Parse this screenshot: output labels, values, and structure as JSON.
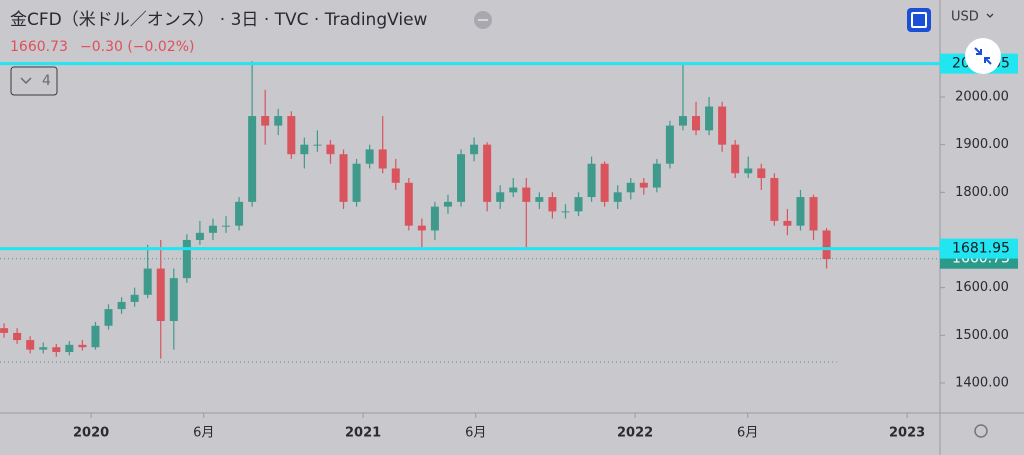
{
  "chart_data": {
    "type": "candlestick",
    "title": "金CFD（米ドル／オンス） · 3日 · TVC · TradingView",
    "last": 1660.73,
    "change": "−0.30 (−0.02%)",
    "currency": "USD",
    "indicator_count": "4",
    "up_color": "#3f9a8c",
    "down_color": "#d9545c",
    "level_color": "#22e5f2",
    "levels": [
      2070.05,
      1681.95
    ],
    "low_line": 1444,
    "xlim": [
      2019.665,
      2023.121
    ],
    "ylim": [
      1337,
      2203.5
    ],
    "xticks": [
      {
        "value": 2020,
        "label": "2020"
      },
      {
        "value": 2020.414,
        "label": "6月"
      },
      {
        "value": 2021,
        "label": "2021"
      },
      {
        "value": 2021.414,
        "label": "6月"
      },
      {
        "value": 2022,
        "label": "2022"
      },
      {
        "value": 2022.414,
        "label": "6月"
      },
      {
        "value": 2023,
        "label": "2023"
      }
    ],
    "yticks": [
      {
        "value": 1400,
        "label": "1400.00"
      },
      {
        "value": 1500,
        "label": "1500.00"
      },
      {
        "value": 1600,
        "label": "1600.00"
      },
      {
        "value": 1800,
        "label": "1800.00"
      },
      {
        "value": 1900,
        "label": "1900.00"
      },
      {
        "value": 2000,
        "label": "2000.00"
      }
    ],
    "x": [
      2019.68,
      2019.728,
      2019.776,
      2019.824,
      2019.872,
      2019.92,
      2019.968,
      2020.016,
      2020.064,
      2020.112,
      2020.16,
      2020.208,
      2020.256,
      2020.304,
      2020.352,
      2020.4,
      2020.448,
      2020.496,
      2020.544,
      2020.592,
      2020.64,
      2020.688,
      2020.736,
      2020.784,
      2020.832,
      2020.88,
      2020.928,
      2020.976,
      2021.024,
      2021.072,
      2021.12,
      2021.168,
      2021.216,
      2021.264,
      2021.312,
      2021.36,
      2021.408,
      2021.456,
      2021.504,
      2021.552,
      2021.6,
      2021.648,
      2021.696,
      2021.744,
      2021.792,
      2021.84,
      2021.888,
      2021.936,
      2021.984,
      2022.032,
      2022.08,
      2022.128,
      2022.176,
      2022.224,
      2022.272,
      2022.32,
      2022.368,
      2022.416,
      2022.464,
      2022.512,
      2022.56,
      2022.608,
      2022.656,
      2022.704
    ],
    "open": [
      1515,
      1505,
      1490,
      1470,
      1475,
      1465,
      1480,
      1475,
      1520,
      1555,
      1570,
      1585,
      1640,
      1530,
      1620,
      1700,
      1715,
      1730,
      1730,
      1780,
      1960,
      1940,
      1960,
      1880,
      1900,
      1900,
      1880,
      1780,
      1860,
      1890,
      1850,
      1820,
      1730,
      1720,
      1770,
      1780,
      1880,
      1900,
      1780,
      1800,
      1810,
      1780,
      1790,
      1760,
      1760,
      1790,
      1860,
      1780,
      1800,
      1820,
      1810,
      1860,
      1940,
      1960,
      1930,
      1980,
      1900,
      1840,
      1850,
      1830,
      1740,
      1730,
      1790,
      1720
    ],
    "high": [
      1525,
      1515,
      1498,
      1485,
      1482,
      1488,
      1490,
      1528,
      1565,
      1580,
      1600,
      1690,
      1700,
      1640,
      1712,
      1740,
      1745,
      1750,
      1790,
      2075,
      2015,
      1975,
      1970,
      1915,
      1930,
      1910,
      1890,
      1870,
      1900,
      1960,
      1870,
      1830,
      1745,
      1780,
      1795,
      1890,
      1915,
      1905,
      1815,
      1830,
      1830,
      1800,
      1800,
      1775,
      1800,
      1875,
      1865,
      1815,
      1830,
      1830,
      1870,
      1950,
      2070,
      1990,
      2000,
      1990,
      1910,
      1875,
      1860,
      1840,
      1765,
      1805,
      1795,
      1725
    ],
    "low": [
      1495,
      1482,
      1462,
      1462,
      1455,
      1458,
      1468,
      1470,
      1512,
      1545,
      1560,
      1578,
      1451,
      1470,
      1610,
      1690,
      1700,
      1715,
      1720,
      1770,
      1900,
      1920,
      1870,
      1850,
      1885,
      1860,
      1765,
      1770,
      1850,
      1840,
      1805,
      1720,
      1680,
      1700,
      1755,
      1770,
      1865,
      1760,
      1765,
      1790,
      1680,
      1765,
      1745,
      1745,
      1750,
      1780,
      1770,
      1765,
      1785,
      1795,
      1800,
      1850,
      1930,
      1920,
      1920,
      1885,
      1830,
      1830,
      1805,
      1730,
      1710,
      1720,
      1700,
      1640
    ],
    "close": [
      1505,
      1490,
      1470,
      1475,
      1465,
      1480,
      1475,
      1520,
      1555,
      1570,
      1585,
      1640,
      1530,
      1620,
      1700,
      1715,
      1730,
      1730,
      1780,
      1960,
      1940,
      1960,
      1880,
      1900,
      1900,
      1880,
      1780,
      1860,
      1890,
      1850,
      1820,
      1730,
      1720,
      1770,
      1780,
      1880,
      1900,
      1780,
      1800,
      1810,
      1780,
      1790,
      1760,
      1760,
      1790,
      1860,
      1780,
      1800,
      1820,
      1810,
      1860,
      1940,
      1960,
      1930,
      1980,
      1900,
      1840,
      1850,
      1830,
      1740,
      1730,
      1790,
      1720,
      1660
    ]
  }
}
